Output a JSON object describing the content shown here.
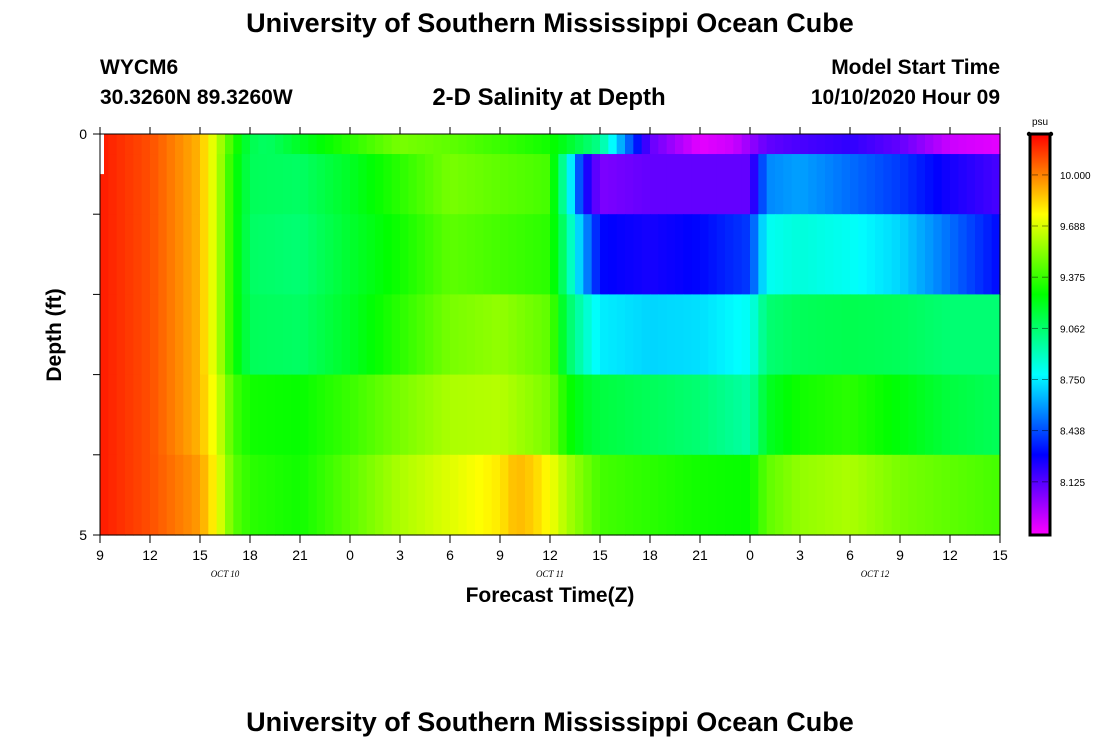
{
  "header": {
    "title": "University of Southern Mississippi Ocean Cube",
    "station": "WYCM6",
    "coordinates": "30.3260N 89.3260W",
    "plot_title": "2-D Salinity at Depth",
    "model_start_label": "Model Start Time",
    "model_start_value": "10/10/2020 Hour 09"
  },
  "footer": {
    "title": "University of Southern Mississippi Ocean Cube"
  },
  "chart_data": {
    "type": "heatmap",
    "xlabel": "Forecast Time(Z)",
    "ylabel": "Depth (ft)",
    "xlim": [
      0,
      54
    ],
    "ylim": [
      5,
      0
    ],
    "x_ticks": [
      "9",
      "12",
      "15",
      "18",
      "21",
      "0",
      "3",
      "6",
      "9",
      "12",
      "15",
      "18",
      "21",
      "0",
      "3",
      "6",
      "9",
      "12",
      "15"
    ],
    "y_ticks": [
      "0",
      "5"
    ],
    "date_labels": [
      {
        "label": "OCT 10",
        "x_hour": 7.5
      },
      {
        "label": "OCT 11",
        "x_hour": 27
      },
      {
        "label": "OCT 12",
        "x_hour": 46.5
      }
    ],
    "colorbar": {
      "unit": "psu",
      "min": 7.8,
      "max": 10.25,
      "labels": [
        "10.000",
        "9.688",
        "9.375",
        "9.062",
        "8.750",
        "8.438",
        "8.125"
      ]
    },
    "depth_layers": [
      0,
      0.5,
      1.5,
      2.5,
      3.5,
      4.5
    ],
    "series": [
      {
        "hours": [
          0,
          3,
          6,
          7,
          8,
          9,
          10,
          12,
          15,
          18,
          21,
          24,
          27,
          30,
          33,
          36,
          38,
          39,
          40,
          42,
          45,
          48,
          51,
          54
        ],
        "values": [
          10.2,
          10.1,
          9.9,
          9.65,
          9.35,
          9.12,
          9.08,
          9.2,
          9.35,
          9.5,
          9.45,
          9.38,
          9.3,
          9.0,
          8.1,
          7.85,
          7.9,
          8.0,
          8.1,
          8.15,
          8.2,
          8.1,
          7.9,
          7.85
        ]
      },
      {
        "hours": [
          0,
          3,
          6,
          7,
          8,
          9,
          12,
          15,
          18,
          21,
          24,
          27,
          27.5,
          28,
          29,
          30,
          33,
          36,
          39,
          40,
          42,
          45,
          48,
          51,
          54
        ],
        "values": [
          10.2,
          10.1,
          9.9,
          9.65,
          9.3,
          9.1,
          9.08,
          9.2,
          9.35,
          9.5,
          9.45,
          9.4,
          9.1,
          8.9,
          8.3,
          8.05,
          8.1,
          8.1,
          8.1,
          8.55,
          8.6,
          8.5,
          8.4,
          8.25,
          8.15
        ]
      },
      {
        "hours": [
          0,
          3,
          6,
          7,
          8,
          9,
          12,
          15,
          18,
          21,
          24,
          27,
          28,
          29,
          30,
          33,
          36,
          39,
          40,
          42,
          45,
          48,
          51,
          54
        ],
        "values": [
          10.2,
          10.1,
          9.9,
          9.65,
          9.3,
          9.08,
          9.05,
          9.18,
          9.3,
          9.45,
          9.4,
          9.35,
          9.0,
          8.6,
          8.3,
          8.25,
          8.3,
          8.4,
          8.8,
          8.85,
          8.8,
          8.7,
          8.5,
          8.3
        ]
      },
      {
        "hours": [
          0,
          3,
          6,
          7,
          8,
          9,
          12,
          15,
          18,
          21,
          24,
          27,
          28,
          29,
          30,
          33,
          36,
          39,
          40,
          42,
          45,
          48,
          51,
          54
        ],
        "values": [
          10.2,
          10.1,
          9.9,
          9.65,
          9.3,
          9.1,
          9.08,
          9.2,
          9.35,
          9.5,
          9.55,
          9.45,
          9.1,
          8.9,
          8.75,
          8.7,
          8.72,
          8.8,
          9.05,
          9.1,
          9.12,
          9.1,
          9.05,
          9.05
        ]
      },
      {
        "hours": [
          0,
          3,
          6,
          7,
          8,
          9,
          12,
          15,
          18,
          21,
          24,
          27,
          28,
          29,
          30,
          33,
          36,
          39,
          40,
          42,
          45,
          48,
          51,
          54
        ],
        "values": [
          10.2,
          10.1,
          9.9,
          9.7,
          9.4,
          9.3,
          9.28,
          9.38,
          9.5,
          9.6,
          9.62,
          9.5,
          9.3,
          9.2,
          9.15,
          9.1,
          9.05,
          8.95,
          9.2,
          9.3,
          9.35,
          9.25,
          9.15,
          9.1
        ]
      },
      {
        "hours": [
          0,
          3,
          6,
          7,
          8,
          9,
          12,
          15,
          18,
          21,
          24,
          25,
          26,
          27,
          28,
          30,
          33,
          36,
          39,
          40,
          42,
          45,
          48,
          51,
          54
        ],
        "values": [
          10.2,
          10.1,
          9.95,
          9.75,
          9.45,
          9.35,
          9.3,
          9.45,
          9.6,
          9.7,
          9.8,
          9.9,
          9.85,
          9.75,
          9.6,
          9.4,
          9.35,
          9.3,
          9.28,
          9.45,
          9.55,
          9.6,
          9.5,
          9.45,
          9.4
        ]
      }
    ]
  }
}
